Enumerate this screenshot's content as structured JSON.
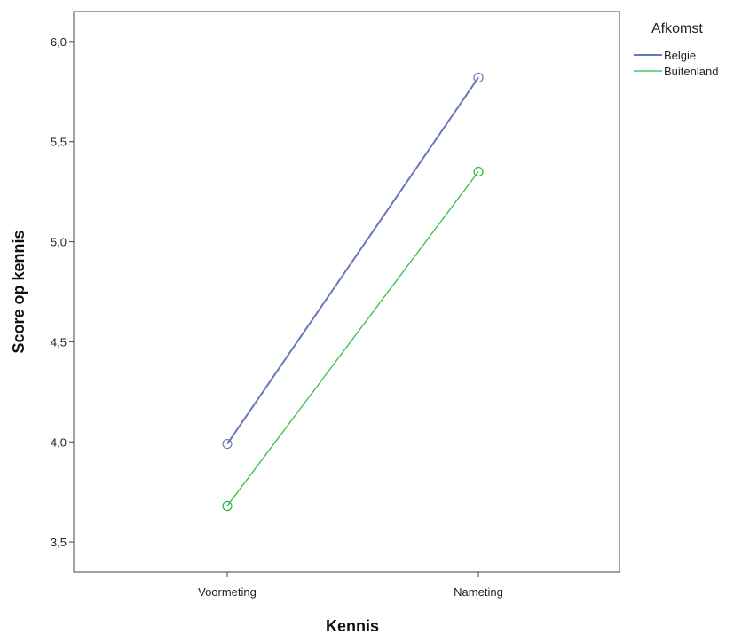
{
  "chart_data": {
    "type": "line",
    "categories": [
      "Voormeting",
      "Nameting"
    ],
    "series": [
      {
        "name": "Belgie",
        "values": [
          3.99,
          5.82
        ],
        "color": "#6677bb"
      },
      {
        "name": "Buitenland",
        "values": [
          3.68,
          5.35
        ],
        "color": "#22bb33"
      }
    ],
    "xlabel": "Kennis",
    "ylabel": "Score op kennis",
    "ylim": [
      3.35,
      6.15
    ],
    "yticks": [
      3.5,
      4.0,
      4.5,
      5.0,
      5.5,
      6.0
    ],
    "ytick_labels": [
      "3,5",
      "4,0",
      "4,5",
      "5,0",
      "5,5",
      "6,0"
    ],
    "legend_title": "Afkomst",
    "legend_position": "top-right",
    "markers": "open-circle",
    "grid": false
  }
}
